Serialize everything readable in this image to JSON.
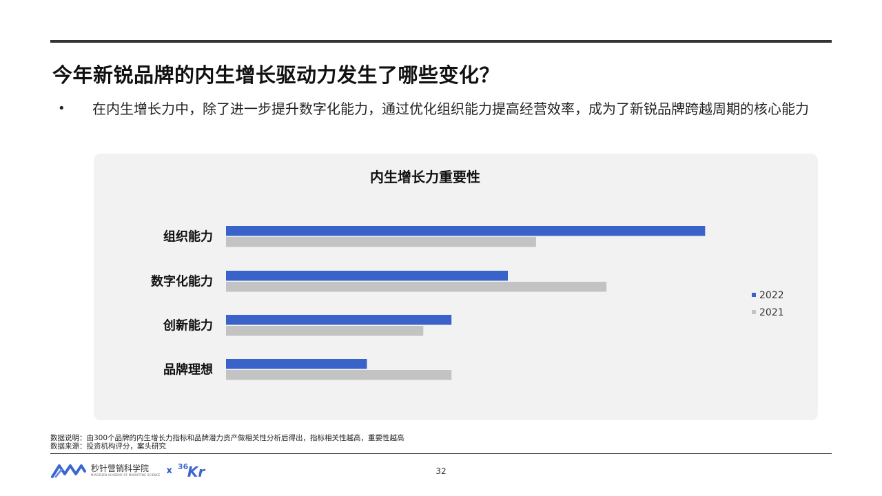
{
  "page": {
    "title": "今年新锐品牌的内生增长驱动力发生了哪些变化？",
    "bullet_symbol": "•",
    "bullet_text": "在内生增长力中，除了进一步提升数字化能力，通过优化组织能力提高经营效率，成为了新锐品牌跨越周期的核心能力",
    "note_line_1": "数据说明：由300个品牌的内生增长力指标和品牌潜力资产做相关性分析后得出，指标相关性越高，重要性越高",
    "note_line_2": "数据来源：投资机构评分，案头研究",
    "page_number": "32"
  },
  "footer": {
    "logo_cn": "秒针营销科学院",
    "logo_en": "MIAOZHEN ACADEMY OF MARKETING SCIENCE",
    "x_label": "x",
    "kr_36": "36",
    "kr_k": "Kr"
  },
  "icons": {
    "miaozhen_logo": "mountain-wave-logo-icon",
    "kr_logo": "36kr-logo-icon"
  },
  "chart_data": {
    "type": "bar",
    "orientation": "horizontal",
    "title": "内生增长力重要性",
    "categories": [
      "组织能力",
      "数字化能力",
      "创新能力",
      "品牌理想"
    ],
    "series": [
      {
        "name": "2022",
        "color": "#3a63c9",
        "values": [
          0.85,
          0.5,
          0.4,
          0.25
        ]
      },
      {
        "name": "2021",
        "color": "#c3c3c3",
        "values": [
          0.55,
          0.675,
          0.35,
          0.4
        ]
      }
    ],
    "xlim": [
      0,
      1
    ],
    "grid": false,
    "legend": "right"
  }
}
